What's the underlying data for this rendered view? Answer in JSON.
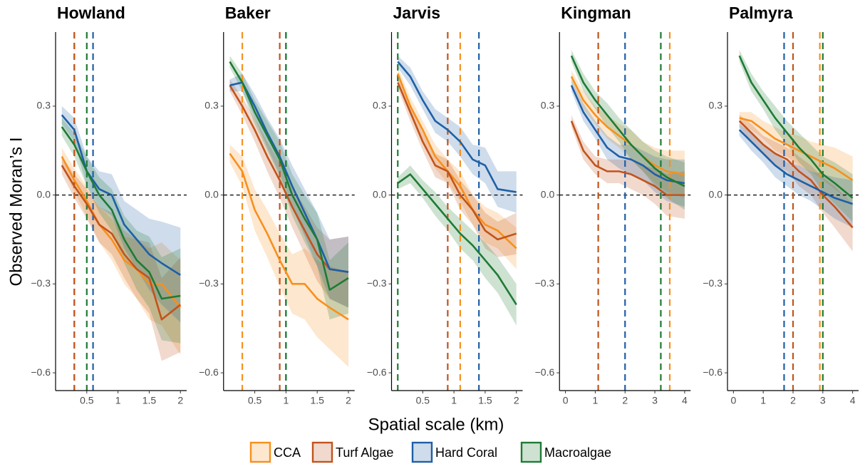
{
  "shared": {
    "x_label": "Spatial scale (km)",
    "y_label": "Observed Moran’s I"
  },
  "chart_data": [
    {
      "type": "line",
      "title": "Howland",
      "x": [
        0.1,
        0.3,
        0.5,
        0.7,
        0.9,
        1.1,
        1.3,
        1.5,
        1.7,
        2.0
      ],
      "xlim": [
        0,
        2.1
      ],
      "xticks": [
        0.5,
        1,
        1.5,
        2
      ],
      "ylim": [
        -0.66,
        0.55
      ],
      "yticks": [
        {
          "value": -0.6,
          "label": "−0.6"
        },
        {
          "value": -0.3,
          "label": "−0.3"
        },
        {
          "value": 0,
          "label": "0.0"
        },
        0.3
      ],
      "hline": 0,
      "series": [
        {
          "name": "CCA",
          "color": "#f7901e",
          "threshold": 0.3,
          "values": [
            0.13,
            0.05,
            -0.02,
            -0.1,
            -0.15,
            -0.22,
            -0.25,
            -0.3,
            -0.3,
            -0.38
          ],
          "lower": [
            0.1,
            0.01,
            -0.07,
            -0.16,
            -0.22,
            -0.3,
            -0.35,
            -0.42,
            -0.44,
            -0.54
          ],
          "upper": [
            0.16,
            0.09,
            0.03,
            -0.04,
            -0.08,
            -0.14,
            -0.15,
            -0.18,
            -0.16,
            -0.22
          ]
        },
        {
          "name": "Turf Algae",
          "color": "#c1541c",
          "threshold": 0.3,
          "values": [
            0.1,
            0.03,
            -0.03,
            -0.1,
            -0.13,
            -0.2,
            -0.25,
            -0.28,
            -0.42,
            -0.37
          ],
          "lower": [
            0.07,
            -0.01,
            -0.08,
            -0.16,
            -0.2,
            -0.28,
            -0.35,
            -0.4,
            -0.56,
            -0.53
          ],
          "upper": [
            0.13,
            0.07,
            0.02,
            -0.04,
            -0.06,
            -0.12,
            -0.15,
            -0.16,
            -0.28,
            -0.21
          ]
        },
        {
          "name": "Hard Coral",
          "color": "#1f5fa6",
          "threshold": 0.6,
          "values": [
            0.27,
            0.22,
            0.08,
            0.02,
            0,
            -0.1,
            -0.15,
            -0.2,
            -0.23,
            -0.27
          ],
          "lower": [
            0.24,
            0.18,
            0.03,
            -0.04,
            -0.07,
            -0.18,
            -0.25,
            -0.32,
            -0.37,
            -0.43
          ],
          "upper": [
            0.3,
            0.26,
            0.13,
            0.08,
            0.07,
            -0.02,
            -0.05,
            -0.08,
            -0.09,
            -0.11
          ]
        },
        {
          "name": "Macroalgae",
          "color": "#1e7b34",
          "threshold": 0.5,
          "values": [
            0.23,
            0.17,
            0.08,
            0,
            -0.05,
            -0.15,
            -0.22,
            -0.26,
            -0.35,
            -0.34
          ],
          "lower": [
            0.2,
            0.13,
            0.03,
            -0.06,
            -0.12,
            -0.23,
            -0.32,
            -0.38,
            -0.49,
            -0.5
          ],
          "upper": [
            0.26,
            0.21,
            0.13,
            0.06,
            0.02,
            -0.07,
            -0.12,
            -0.14,
            -0.21,
            -0.18
          ]
        }
      ]
    },
    {
      "type": "line",
      "title": "Baker",
      "x": [
        0.1,
        0.3,
        0.5,
        0.7,
        0.9,
        1.1,
        1.3,
        1.5,
        1.7,
        2.0
      ],
      "xlim": [
        0,
        2.1
      ],
      "xticks": [
        0.5,
        1,
        1.5,
        2
      ],
      "ylim": [
        -0.66,
        0.55
      ],
      "yticks": [
        {
          "value": -0.6,
          "label": "−0.6"
        },
        {
          "value": -0.3,
          "label": "−0.3"
        },
        {
          "value": 0,
          "label": "0.0"
        },
        0.3
      ],
      "hline": 0,
      "series": [
        {
          "name": "CCA",
          "color": "#f7901e",
          "threshold": 0.3,
          "values": [
            0.14,
            0.08,
            -0.05,
            -0.13,
            -0.22,
            -0.3,
            -0.3,
            -0.35,
            -0.38,
            -0.42
          ],
          "lower": [
            0.11,
            0.03,
            -0.12,
            -0.21,
            -0.31,
            -0.4,
            -0.42,
            -0.48,
            -0.52,
            -0.58
          ],
          "upper": [
            0.17,
            0.13,
            0.02,
            -0.05,
            -0.13,
            -0.2,
            -0.18,
            -0.22,
            -0.24,
            -0.26
          ]
        },
        {
          "name": "Turf Algae",
          "color": "#c1541c",
          "threshold": 0.9,
          "values": [
            0.37,
            0.3,
            0.22,
            0.13,
            0.05,
            -0.04,
            -0.12,
            -0.2,
            -0.25,
            -0.26
          ],
          "lower": [
            0.35,
            0.27,
            0.18,
            0.08,
            -0.01,
            -0.11,
            -0.2,
            -0.29,
            -0.35,
            -0.38
          ],
          "upper": [
            0.39,
            0.33,
            0.26,
            0.18,
            0.11,
            0.03,
            -0.04,
            -0.11,
            -0.15,
            -0.14
          ]
        },
        {
          "name": "Hard Coral",
          "color": "#1f5fa6",
          "threshold": 1.0,
          "values": [
            0.37,
            0.38,
            0.3,
            0.21,
            0.13,
            0.03,
            -0.06,
            -0.15,
            -0.25,
            -0.26
          ],
          "lower": [
            0.35,
            0.35,
            0.26,
            0.16,
            0.07,
            -0.04,
            -0.14,
            -0.24,
            -0.35,
            -0.38
          ],
          "upper": [
            0.39,
            0.41,
            0.34,
            0.26,
            0.19,
            0.1,
            0.02,
            -0.06,
            -0.15,
            -0.14
          ]
        },
        {
          "name": "Macroalgae",
          "color": "#1e7b34",
          "threshold": 1.0,
          "values": [
            0.45,
            0.38,
            0.28,
            0.2,
            0.12,
            0,
            -0.08,
            -0.15,
            -0.32,
            -0.28
          ],
          "lower": [
            0.43,
            0.35,
            0.24,
            0.15,
            0.06,
            -0.07,
            -0.16,
            -0.24,
            -0.42,
            -0.4
          ],
          "upper": [
            0.47,
            0.41,
            0.32,
            0.25,
            0.18,
            0.07,
            0,
            -0.06,
            -0.22,
            -0.16
          ]
        }
      ]
    },
    {
      "type": "line",
      "title": "Jarvis",
      "x": [
        0.1,
        0.3,
        0.5,
        0.7,
        0.9,
        1.1,
        1.3,
        1.5,
        1.7,
        2.0
      ],
      "xlim": [
        0,
        2.1
      ],
      "xticks": [
        0.5,
        1,
        1.5,
        2
      ],
      "ylim": [
        -0.66,
        0.55
      ],
      "yticks": [
        {
          "value": -0.6,
          "label": "−0.6"
        },
        {
          "value": -0.3,
          "label": "−0.3"
        },
        {
          "value": 0,
          "label": "0.0"
        },
        0.3
      ],
      "hline": 0,
      "series": [
        {
          "name": "CCA",
          "color": "#f7901e",
          "threshold": 1.1,
          "values": [
            0.41,
            0.3,
            0.22,
            0.13,
            0.08,
            0.03,
            -0.05,
            -0.1,
            -0.12,
            -0.18
          ],
          "lower": [
            0.39,
            0.27,
            0.19,
            0.09,
            0.04,
            -0.02,
            -0.1,
            -0.16,
            -0.18,
            -0.25
          ],
          "upper": [
            0.43,
            0.33,
            0.25,
            0.17,
            0.12,
            0.08,
            0,
            -0.04,
            -0.06,
            -0.11
          ]
        },
        {
          "name": "Turf Algae",
          "color": "#c1541c",
          "threshold": 0.9,
          "values": [
            0.38,
            0.28,
            0.18,
            0.1,
            0.08,
            0,
            -0.05,
            -0.12,
            -0.15,
            -0.13
          ],
          "lower": [
            0.36,
            0.25,
            0.15,
            0.06,
            0.04,
            -0.05,
            -0.1,
            -0.18,
            -0.21,
            -0.2
          ],
          "upper": [
            0.4,
            0.31,
            0.21,
            0.14,
            0.12,
            0.05,
            0,
            -0.06,
            -0.09,
            -0.06
          ]
        },
        {
          "name": "Hard Coral",
          "color": "#1f5fa6",
          "threshold": 1.4,
          "values": [
            0.45,
            0.4,
            0.32,
            0.25,
            0.22,
            0.18,
            0.12,
            0.1,
            0.02,
            0.01
          ],
          "lower": [
            0.43,
            0.37,
            0.29,
            0.21,
            0.18,
            0.13,
            0.07,
            0.04,
            -0.04,
            -0.06
          ],
          "upper": [
            0.47,
            0.43,
            0.35,
            0.29,
            0.26,
            0.23,
            0.17,
            0.16,
            0.08,
            0.08
          ]
        },
        {
          "name": "Macroalgae",
          "color": "#1e7b34",
          "threshold": 0.1,
          "values": [
            0.04,
            0.07,
            0.02,
            -0.03,
            -0.08,
            -0.13,
            -0.17,
            -0.22,
            -0.27,
            -0.37
          ],
          "lower": [
            0.02,
            0.04,
            -0.01,
            -0.07,
            -0.12,
            -0.18,
            -0.22,
            -0.28,
            -0.33,
            -0.44
          ],
          "upper": [
            0.06,
            0.1,
            0.05,
            0.01,
            -0.04,
            -0.08,
            -0.12,
            -0.16,
            -0.21,
            -0.3
          ]
        }
      ]
    },
    {
      "type": "line",
      "title": "Kingman",
      "x": [
        0.2,
        0.6,
        1,
        1.4,
        1.8,
        2.2,
        2.6,
        3,
        3.4,
        4
      ],
      "xlim": [
        -0.2,
        4.2
      ],
      "xticks": [
        0,
        1,
        2,
        3,
        4
      ],
      "ylim": [
        -0.66,
        0.55
      ],
      "yticks": [
        {
          "value": -0.6,
          "label": "−0.6"
        },
        {
          "value": -0.3,
          "label": "−0.3"
        },
        {
          "value": 0,
          "label": "0.0"
        },
        0.3
      ],
      "hline": 0,
      "series": [
        {
          "name": "CCA",
          "color": "#f7901e",
          "threshold": 3.5,
          "values": [
            0.4,
            0.32,
            0.27,
            0.23,
            0.2,
            0.17,
            0.13,
            0.1,
            0.08,
            0.07
          ],
          "lower": [
            0.38,
            0.29,
            0.24,
            0.19,
            0.16,
            0.12,
            0.08,
            0.04,
            0.01,
            -0.01
          ],
          "upper": [
            0.42,
            0.35,
            0.3,
            0.27,
            0.24,
            0.22,
            0.18,
            0.16,
            0.15,
            0.15
          ]
        },
        {
          "name": "Turf Algae",
          "color": "#c1541c",
          "threshold": 1.1,
          "values": [
            0.25,
            0.15,
            0.1,
            0.08,
            0.08,
            0.07,
            0.05,
            0.03,
            0,
            0
          ],
          "lower": [
            0.23,
            0.12,
            0.07,
            0.04,
            0.04,
            0.02,
            0,
            -0.03,
            -0.07,
            -0.08
          ],
          "upper": [
            0.27,
            0.18,
            0.13,
            0.12,
            0.12,
            0.12,
            0.1,
            0.09,
            0.07,
            0.08
          ]
        },
        {
          "name": "Hard Coral",
          "color": "#1f5fa6",
          "threshold": 2,
          "values": [
            0.37,
            0.28,
            0.22,
            0.16,
            0.13,
            0.12,
            0.1,
            0.07,
            0.05,
            0.04
          ],
          "lower": [
            0.35,
            0.25,
            0.19,
            0.12,
            0.09,
            0.07,
            0.05,
            0.01,
            -0.02,
            -0.04
          ],
          "upper": [
            0.39,
            0.31,
            0.25,
            0.2,
            0.17,
            0.17,
            0.15,
            0.13,
            0.12,
            0.12
          ]
        },
        {
          "name": "Macroalgae",
          "color": "#1e7b34",
          "threshold": 3.2,
          "values": [
            0.47,
            0.38,
            0.32,
            0.27,
            0.22,
            0.17,
            0.13,
            0.09,
            0.06,
            0.03
          ],
          "lower": [
            0.45,
            0.35,
            0.29,
            0.23,
            0.18,
            0.12,
            0.08,
            0.03,
            -0.01,
            -0.05
          ],
          "upper": [
            0.49,
            0.41,
            0.35,
            0.31,
            0.26,
            0.22,
            0.18,
            0.15,
            0.13,
            0.11
          ]
        }
      ]
    },
    {
      "type": "line",
      "title": "Palmyra",
      "x": [
        0.2,
        0.6,
        1,
        1.4,
        1.8,
        2.2,
        2.6,
        3,
        3.4,
        4
      ],
      "xlim": [
        -0.2,
        4.2
      ],
      "xticks": [
        0,
        1,
        2,
        3,
        4
      ],
      "ylim": [
        -0.66,
        0.55
      ],
      "yticks": [
        {
          "value": -0.6,
          "label": "−0.6"
        },
        {
          "value": -0.3,
          "label": "−0.3"
        },
        {
          "value": 0,
          "label": "0.0"
        },
        0.3
      ],
      "hline": 0,
      "series": [
        {
          "name": "CCA",
          "color": "#f7901e",
          "threshold": 2.9,
          "values": [
            0.26,
            0.25,
            0.22,
            0.19,
            0.17,
            0.15,
            0.13,
            0.11,
            0.09,
            0.05
          ],
          "lower": [
            0.24,
            0.22,
            0.19,
            0.15,
            0.13,
            0.1,
            0.08,
            0.05,
            0.02,
            -0.03
          ],
          "upper": [
            0.28,
            0.28,
            0.25,
            0.23,
            0.21,
            0.2,
            0.18,
            0.17,
            0.16,
            0.13
          ]
        },
        {
          "name": "Turf Algae",
          "color": "#c1541c",
          "threshold": 2,
          "values": [
            0.25,
            0.21,
            0.17,
            0.14,
            0.12,
            0.08,
            0.05,
            0,
            -0.04,
            -0.11
          ],
          "lower": [
            0.23,
            0.18,
            0.14,
            0.1,
            0.08,
            0.03,
            0,
            -0.06,
            -0.11,
            -0.19
          ],
          "upper": [
            0.27,
            0.24,
            0.2,
            0.18,
            0.16,
            0.13,
            0.1,
            0.06,
            0.03,
            -0.03
          ]
        },
        {
          "name": "Hard Coral",
          "color": "#1f5fa6",
          "threshold": 1.7,
          "values": [
            0.22,
            0.18,
            0.14,
            0.1,
            0.07,
            0.05,
            0.03,
            0.01,
            -0.01,
            -0.03
          ],
          "lower": [
            0.2,
            0.15,
            0.11,
            0.06,
            0.03,
            0,
            -0.02,
            -0.05,
            -0.08,
            -0.11
          ],
          "upper": [
            0.24,
            0.21,
            0.17,
            0.14,
            0.11,
            0.1,
            0.08,
            0.07,
            0.06,
            0.05
          ]
        },
        {
          "name": "Macroalgae",
          "color": "#1e7b34",
          "threshold": 3,
          "values": [
            0.47,
            0.38,
            0.32,
            0.26,
            0.21,
            0.16,
            0.12,
            0.07,
            0.04,
            -0.01
          ],
          "lower": [
            0.45,
            0.35,
            0.29,
            0.22,
            0.17,
            0.11,
            0.07,
            0.01,
            -0.03,
            -0.09
          ],
          "upper": [
            0.49,
            0.41,
            0.35,
            0.3,
            0.25,
            0.21,
            0.17,
            0.13,
            0.11,
            0.07
          ]
        }
      ]
    }
  ]
}
